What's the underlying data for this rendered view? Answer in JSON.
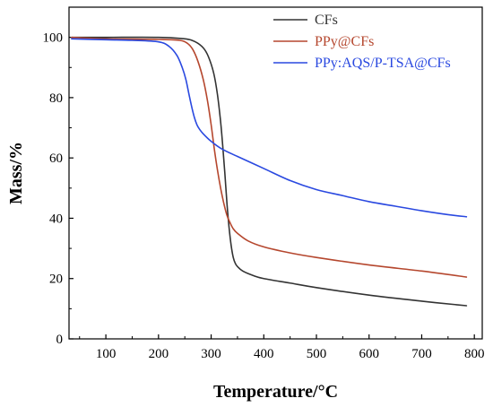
{
  "chart_data": {
    "type": "line",
    "xlabel": "Temperature/°C",
    "ylabel": "Mass/%",
    "xlim": [
      30,
      815
    ],
    "ylim": [
      0,
      110
    ],
    "xticks": [
      100,
      200,
      300,
      400,
      500,
      600,
      700,
      800
    ],
    "yticks": [
      0,
      20,
      40,
      60,
      80,
      100
    ],
    "xtick_labels": [
      "100",
      "200",
      "300",
      "400",
      "500",
      "600",
      "700",
      "800"
    ],
    "ytick_labels": [
      "0",
      "20",
      "40",
      "60",
      "80",
      "100"
    ],
    "grid": false,
    "legend_position": "top-right",
    "series": [
      {
        "name": "CFs",
        "color": "#333333",
        "x": [
          35,
          100,
          200,
          250,
          270,
          285,
          295,
          305,
          312,
          318,
          322,
          326,
          330,
          334,
          338,
          342,
          346,
          350,
          360,
          380,
          400,
          450,
          500,
          600,
          700,
          785
        ],
        "y": [
          100,
          100,
          100,
          99.5,
          98.5,
          96.5,
          93.5,
          88,
          81,
          72,
          64,
          55,
          45,
          37,
          31,
          27,
          25,
          24,
          22.5,
          21,
          20,
          18.5,
          17,
          14.5,
          12.5,
          11
        ]
      },
      {
        "name": "PPy@CFs",
        "color": "#b5472e",
        "x": [
          35,
          100,
          200,
          240,
          255,
          265,
          275,
          285,
          293,
          300,
          306,
          312,
          318,
          324,
          330,
          336,
          342,
          350,
          370,
          400,
          450,
          500,
          600,
          700,
          785
        ],
        "y": [
          100,
          99.5,
          99.3,
          99,
          98,
          96,
          92,
          86,
          79,
          71,
          63,
          56,
          50,
          45,
          41,
          38.5,
          36.5,
          35,
          32.5,
          30.5,
          28.5,
          27,
          24.5,
          22.5,
          20.5
        ]
      },
      {
        "name": "PPy:AQS/P-TSA@CFs",
        "color": "#2a49e0",
        "x": [
          35,
          100,
          150,
          200,
          220,
          235,
          245,
          252,
          258,
          263,
          268,
          273,
          278,
          285,
          300,
          320,
          350,
          400,
          450,
          500,
          550,
          600,
          650,
          700,
          750,
          785
        ],
        "y": [
          99.5,
          99.2,
          99,
          98.5,
          97,
          94,
          90,
          86,
          81,
          77,
          73.5,
          71,
          69.5,
          68,
          65.5,
          63,
          60.5,
          56.5,
          52.5,
          49.5,
          47.5,
          45.5,
          44,
          42.5,
          41.2,
          40.5
        ]
      }
    ]
  }
}
